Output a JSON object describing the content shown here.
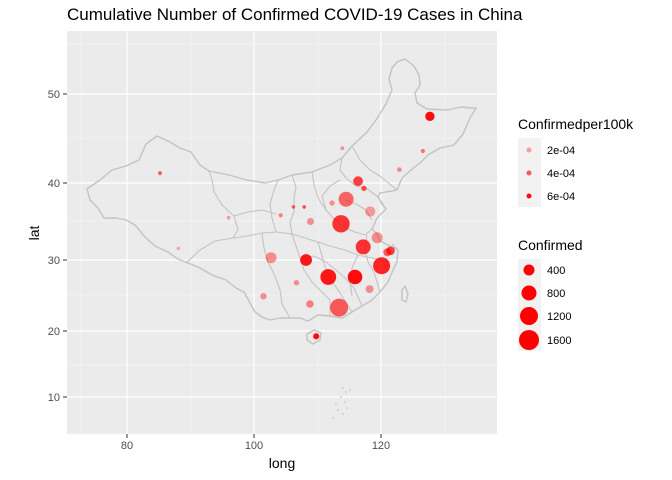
{
  "chart_data": {
    "type": "scatter",
    "title": "Cumulative Number of Confirmed COVID-19 Cases in China",
    "xlabel": "long",
    "ylabel": "lat",
    "xlim": [
      71,
      138
    ],
    "ylim": [
      5,
      57
    ],
    "x_ticks": [
      80,
      100,
      120
    ],
    "y_ticks": [
      10,
      20,
      30,
      40,
      50
    ],
    "grid": true,
    "panel_background": "#ebebeb",
    "legend_position": "right",
    "legend_color": {
      "title": "Confirmedper100k",
      "entries": [
        {
          "label": "2e-04",
          "opacity": 0.35
        },
        {
          "label": "4e-04",
          "opacity": 0.65
        },
        {
          "label": "6e-04",
          "opacity": 0.95
        }
      ]
    },
    "legend_size": {
      "title": "Confirmed",
      "entries": [
        {
          "label": "400",
          "value": 400
        },
        {
          "label": "800",
          "value": 800
        },
        {
          "label": "1200",
          "value": 1200
        },
        {
          "label": "1600",
          "value": 1600
        }
      ]
    },
    "point_color": "#ff0000",
    "outline_color": "#c0c0c0",
    "points": [
      {
        "long": 127.7,
        "lat": 47.5,
        "confirmed": 350,
        "per100k": 0.00095
      },
      {
        "long": 126.6,
        "lat": 43.6,
        "confirmed": 70,
        "per100k": 0.0004
      },
      {
        "long": 122.9,
        "lat": 41.5,
        "confirmed": 90,
        "per100k": 0.0003
      },
      {
        "long": 113.9,
        "lat": 43.9,
        "confirmed": 60,
        "per100k": 0.0003
      },
      {
        "long": 85.2,
        "lat": 41.1,
        "confirmed": 70,
        "per100k": 0.00045
      },
      {
        "long": 116.4,
        "lat": 40.2,
        "confirmed": 380,
        "per100k": 0.0006
      },
      {
        "long": 117.3,
        "lat": 39.3,
        "confirmed": 120,
        "per100k": 0.00055
      },
      {
        "long": 114.5,
        "lat": 37.9,
        "confirmed": 900,
        "per100k": 0.00045
      },
      {
        "long": 112.3,
        "lat": 37.4,
        "confirmed": 110,
        "per100k": 0.0003
      },
      {
        "long": 118.3,
        "lat": 36.3,
        "confirmed": 420,
        "per100k": 0.00025
      },
      {
        "long": 108.9,
        "lat": 35.0,
        "confirmed": 200,
        "per100k": 0.0003
      },
      {
        "long": 106.2,
        "lat": 36.9,
        "confirmed": 50,
        "per100k": 0.0005
      },
      {
        "long": 104.2,
        "lat": 35.8,
        "confirmed": 70,
        "per100k": 0.00035
      },
      {
        "long": 96.0,
        "lat": 35.5,
        "confirmed": 18,
        "per100k": 0.00025
      },
      {
        "long": 88.1,
        "lat": 31.5,
        "confirmed": 1,
        "per100k": 0.0002
      },
      {
        "long": 113.7,
        "lat": 34.7,
        "confirmed": 1200,
        "per100k": 0.00065
      },
      {
        "long": 119.4,
        "lat": 32.9,
        "confirmed": 480,
        "per100k": 0.0003
      },
      {
        "long": 117.2,
        "lat": 31.7,
        "confirmed": 900,
        "per100k": 0.00065
      },
      {
        "long": 121.5,
        "lat": 31.2,
        "confirmed": 300,
        "per100k": 0.0006
      },
      {
        "long": 121.0,
        "lat": 31.0,
        "confirmed": 250,
        "per100k": 0.0005
      },
      {
        "long": 120.1,
        "lat": 29.2,
        "confirmed": 1150,
        "per100k": 0.0007
      },
      {
        "long": 118.2,
        "lat": 25.9,
        "confirmed": 250,
        "per100k": 0.0003
      },
      {
        "long": 115.9,
        "lat": 27.6,
        "confirmed": 850,
        "per100k": 0.0008
      },
      {
        "long": 111.7,
        "lat": 27.6,
        "confirmed": 1000,
        "per100k": 0.00075
      },
      {
        "long": 108.2,
        "lat": 30.0,
        "confirmed": 550,
        "per100k": 0.00075
      },
      {
        "long": 102.7,
        "lat": 30.3,
        "confirmed": 480,
        "per100k": 0.0003
      },
      {
        "long": 106.7,
        "lat": 26.8,
        "confirmed": 120,
        "per100k": 0.0003
      },
      {
        "long": 101.5,
        "lat": 24.9,
        "confirmed": 160,
        "per100k": 0.0003
      },
      {
        "long": 108.8,
        "lat": 23.8,
        "confirmed": 230,
        "per100k": 0.00035
      },
      {
        "long": 113.4,
        "lat": 23.3,
        "confirmed": 1300,
        "per100k": 0.0005
      },
      {
        "long": 109.8,
        "lat": 19.2,
        "confirmed": 150,
        "per100k": 0.0008
      },
      {
        "long": 107.9,
        "lat": 36.9,
        "confirmed": 40,
        "per100k": 0.00055
      }
    ]
  }
}
